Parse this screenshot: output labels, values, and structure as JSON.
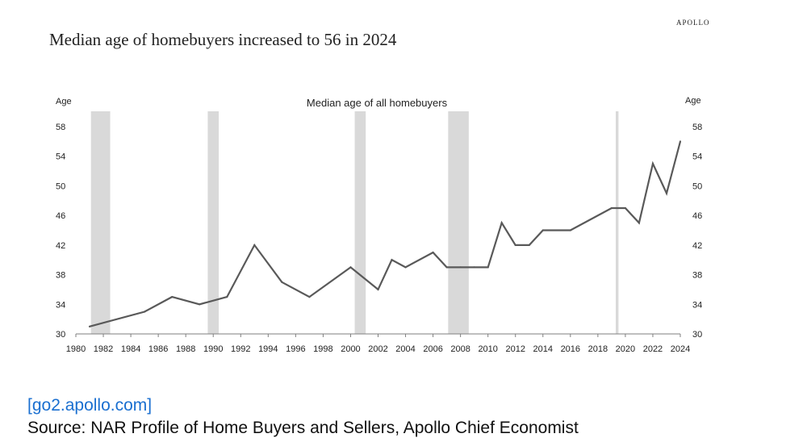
{
  "header": {
    "brand": "APOLLO",
    "headline": "Median age of homebuyers increased to 56 in 2024"
  },
  "footer": {
    "link": "[go2.apollo.com]",
    "source": "Source: NAR Profile of Home Buyers and Sellers, Apollo Chief Economist"
  },
  "chart_data": {
    "type": "line",
    "title": "Median age of all homebuyers",
    "ylabel_left": "Age",
    "ylabel_right": "Age",
    "xlabel": "",
    "xlim": [
      1980,
      2024
    ],
    "ylim": [
      30,
      58
    ],
    "x_ticks": [
      1980,
      1982,
      1984,
      1986,
      1988,
      1990,
      1992,
      1994,
      1996,
      1998,
      2000,
      2002,
      2004,
      2006,
      2008,
      2010,
      2012,
      2014,
      2016,
      2018,
      2020,
      2022,
      2024
    ],
    "y_ticks": [
      30,
      34,
      38,
      42,
      46,
      50,
      54,
      58
    ],
    "grid": false,
    "line_color": "#595959",
    "recession_color": "#d9d9d9",
    "recessions": [
      [
        1981.1,
        1982.5
      ],
      [
        1989.6,
        1990.4
      ],
      [
        2000.3,
        2001.1
      ],
      [
        2007.1,
        2008.6
      ],
      [
        2019.3,
        2019.5
      ]
    ],
    "series": [
      {
        "x": [
          1981,
          1985,
          1987,
          1989,
          1991,
          1993,
          1995,
          1997,
          2000,
          2002,
          2003,
          2004,
          2006,
          2007,
          2008,
          2009,
          2010,
          2011,
          2012,
          2013,
          2014,
          2016,
          2019,
          2020,
          2021,
          2022,
          2023,
          2024
        ],
        "values": [
          31,
          33,
          35,
          34,
          35,
          42,
          37,
          35,
          39,
          36,
          40,
          39,
          41,
          39,
          39,
          39,
          39,
          45,
          42,
          42,
          44,
          44,
          47,
          47,
          45,
          53,
          49,
          56
        ]
      }
    ]
  }
}
